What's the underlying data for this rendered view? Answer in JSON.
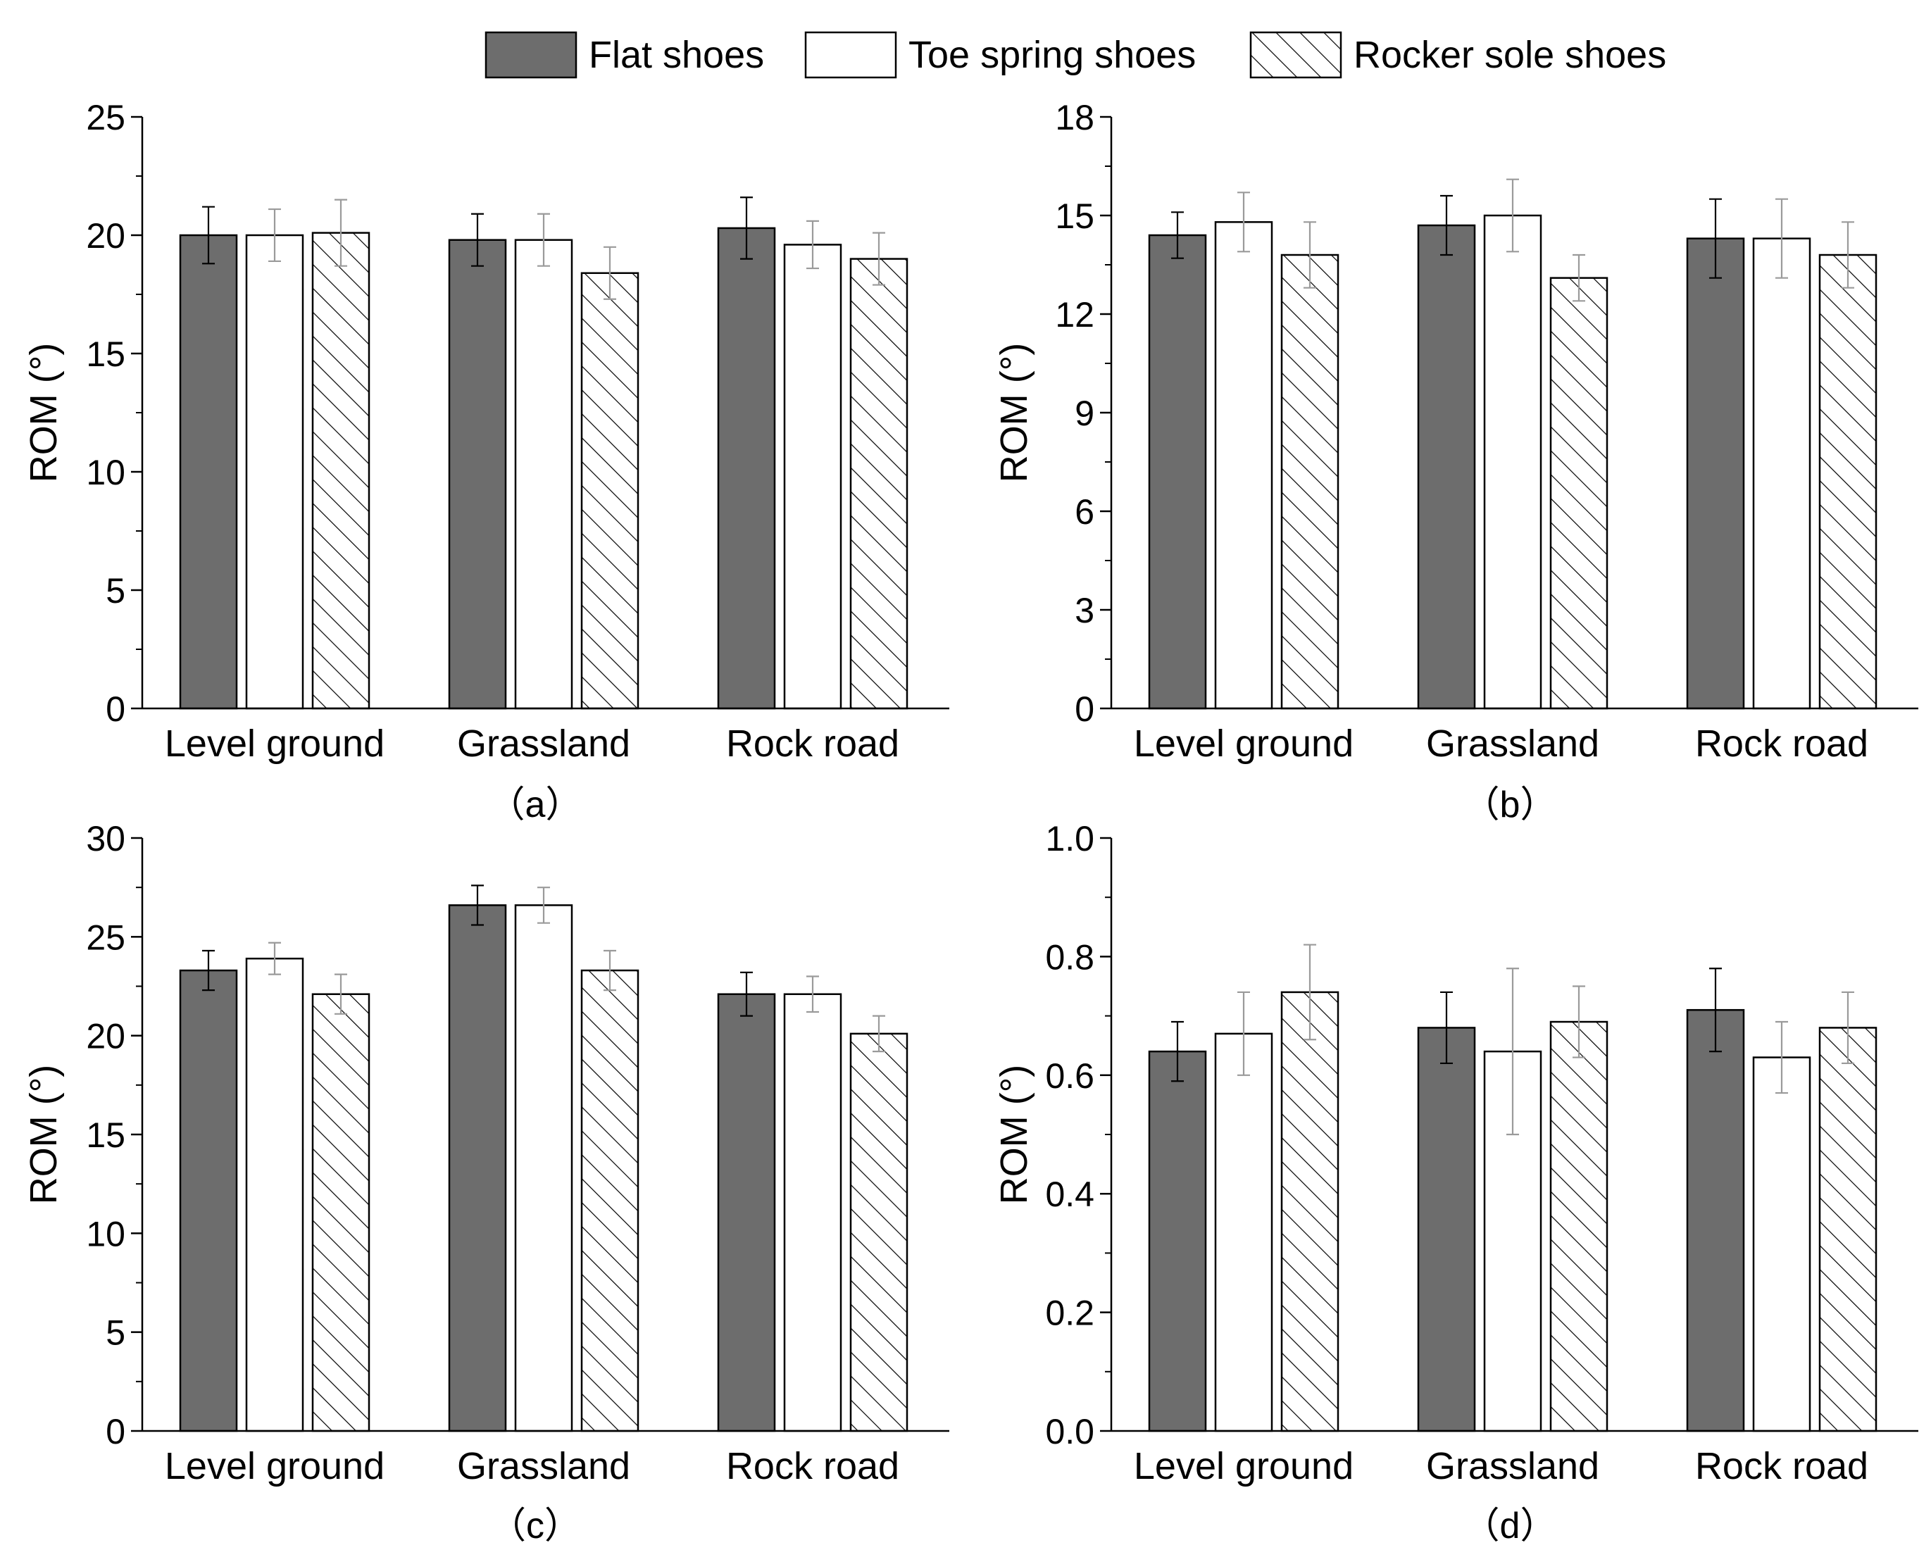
{
  "legend": [
    {
      "name": "Flat shoes",
      "style": "dark"
    },
    {
      "name": "Toe spring shoes",
      "style": "white"
    },
    {
      "name": "Rocker sole shoes",
      "style": "hatch"
    }
  ],
  "colors": {
    "dark": "#6d6d6d",
    "white": "#ffffff",
    "axis": "#000000",
    "errDark": "#000000",
    "errLight": "#9a9a9a"
  },
  "chart_data": [
    {
      "type": "bar",
      "panel_label": "（a）",
      "ylabel": "ROM (°)",
      "ylim": [
        0,
        25
      ],
      "yticks": [
        0,
        5,
        10,
        15,
        20,
        25
      ],
      "ytick_labels": [
        "0",
        "5",
        "10",
        "15",
        "20",
        "25"
      ],
      "categories": [
        "Level ground",
        "Grassland",
        "Rock road"
      ],
      "series": [
        {
          "name": "Flat shoes",
          "values": [
            20.0,
            19.8,
            20.3
          ],
          "errors": [
            1.2,
            1.1,
            1.3
          ]
        },
        {
          "name": "Toe spring shoes",
          "values": [
            20.0,
            19.8,
            19.6
          ],
          "errors": [
            1.1,
            1.1,
            1.0
          ]
        },
        {
          "name": "Rocker sole shoes",
          "values": [
            20.1,
            18.4,
            19.0
          ],
          "errors": [
            1.4,
            1.1,
            1.1
          ]
        }
      ]
    },
    {
      "type": "bar",
      "panel_label": "（b）",
      "ylabel": "ROM (°)",
      "ylim": [
        0,
        18
      ],
      "yticks": [
        0,
        3,
        6,
        9,
        12,
        15,
        18
      ],
      "ytick_labels": [
        "0",
        "3",
        "6",
        "9",
        "12",
        "15",
        "18"
      ],
      "categories": [
        "Level ground",
        "Grassland",
        "Rock road"
      ],
      "series": [
        {
          "name": "Flat shoes",
          "values": [
            14.4,
            14.7,
            14.3
          ],
          "errors": [
            0.7,
            0.9,
            1.2
          ]
        },
        {
          "name": "Toe spring shoes",
          "values": [
            14.8,
            15.0,
            14.3
          ],
          "errors": [
            0.9,
            1.1,
            1.2
          ]
        },
        {
          "name": "Rocker sole shoes",
          "values": [
            13.8,
            13.1,
            13.8
          ],
          "errors": [
            1.0,
            0.7,
            1.0
          ]
        }
      ]
    },
    {
      "type": "bar",
      "panel_label": "（c）",
      "ylabel": "ROM (°)",
      "ylim": [
        0,
        30
      ],
      "yticks": [
        0,
        5,
        10,
        15,
        20,
        25,
        30
      ],
      "ytick_labels": [
        "0",
        "5",
        "10",
        "15",
        "20",
        "25",
        "30"
      ],
      "categories": [
        "Level ground",
        "Grassland",
        "Rock road"
      ],
      "series": [
        {
          "name": "Flat shoes",
          "values": [
            23.3,
            26.6,
            22.1
          ],
          "errors": [
            1.0,
            1.0,
            1.1
          ]
        },
        {
          "name": "Toe spring shoes",
          "values": [
            23.9,
            26.6,
            22.1
          ],
          "errors": [
            0.8,
            0.9,
            0.9
          ]
        },
        {
          "name": "Rocker sole shoes",
          "values": [
            22.1,
            23.3,
            20.1
          ],
          "errors": [
            1.0,
            1.0,
            0.9
          ]
        }
      ]
    },
    {
      "type": "bar",
      "panel_label": "（d）",
      "ylabel": "ROM (°)",
      "ylim": [
        0,
        1.0
      ],
      "yticks": [
        0,
        0.2,
        0.4,
        0.6,
        0.8,
        1.0
      ],
      "ytick_labels": [
        "0.0",
        "0.2",
        "0.4",
        "0.6",
        "0.8",
        "1.0"
      ],
      "categories": [
        "Level ground",
        "Grassland",
        "Rock road"
      ],
      "series": [
        {
          "name": "Flat shoes",
          "values": [
            0.64,
            0.68,
            0.71
          ],
          "errors": [
            0.05,
            0.06,
            0.07
          ]
        },
        {
          "name": "Toe spring shoes",
          "values": [
            0.67,
            0.64,
            0.63
          ],
          "errors": [
            0.07,
            0.14,
            0.06
          ]
        },
        {
          "name": "Rocker sole shoes",
          "values": [
            0.74,
            0.69,
            0.68
          ],
          "errors": [
            0.08,
            0.06,
            0.06
          ]
        }
      ]
    }
  ]
}
